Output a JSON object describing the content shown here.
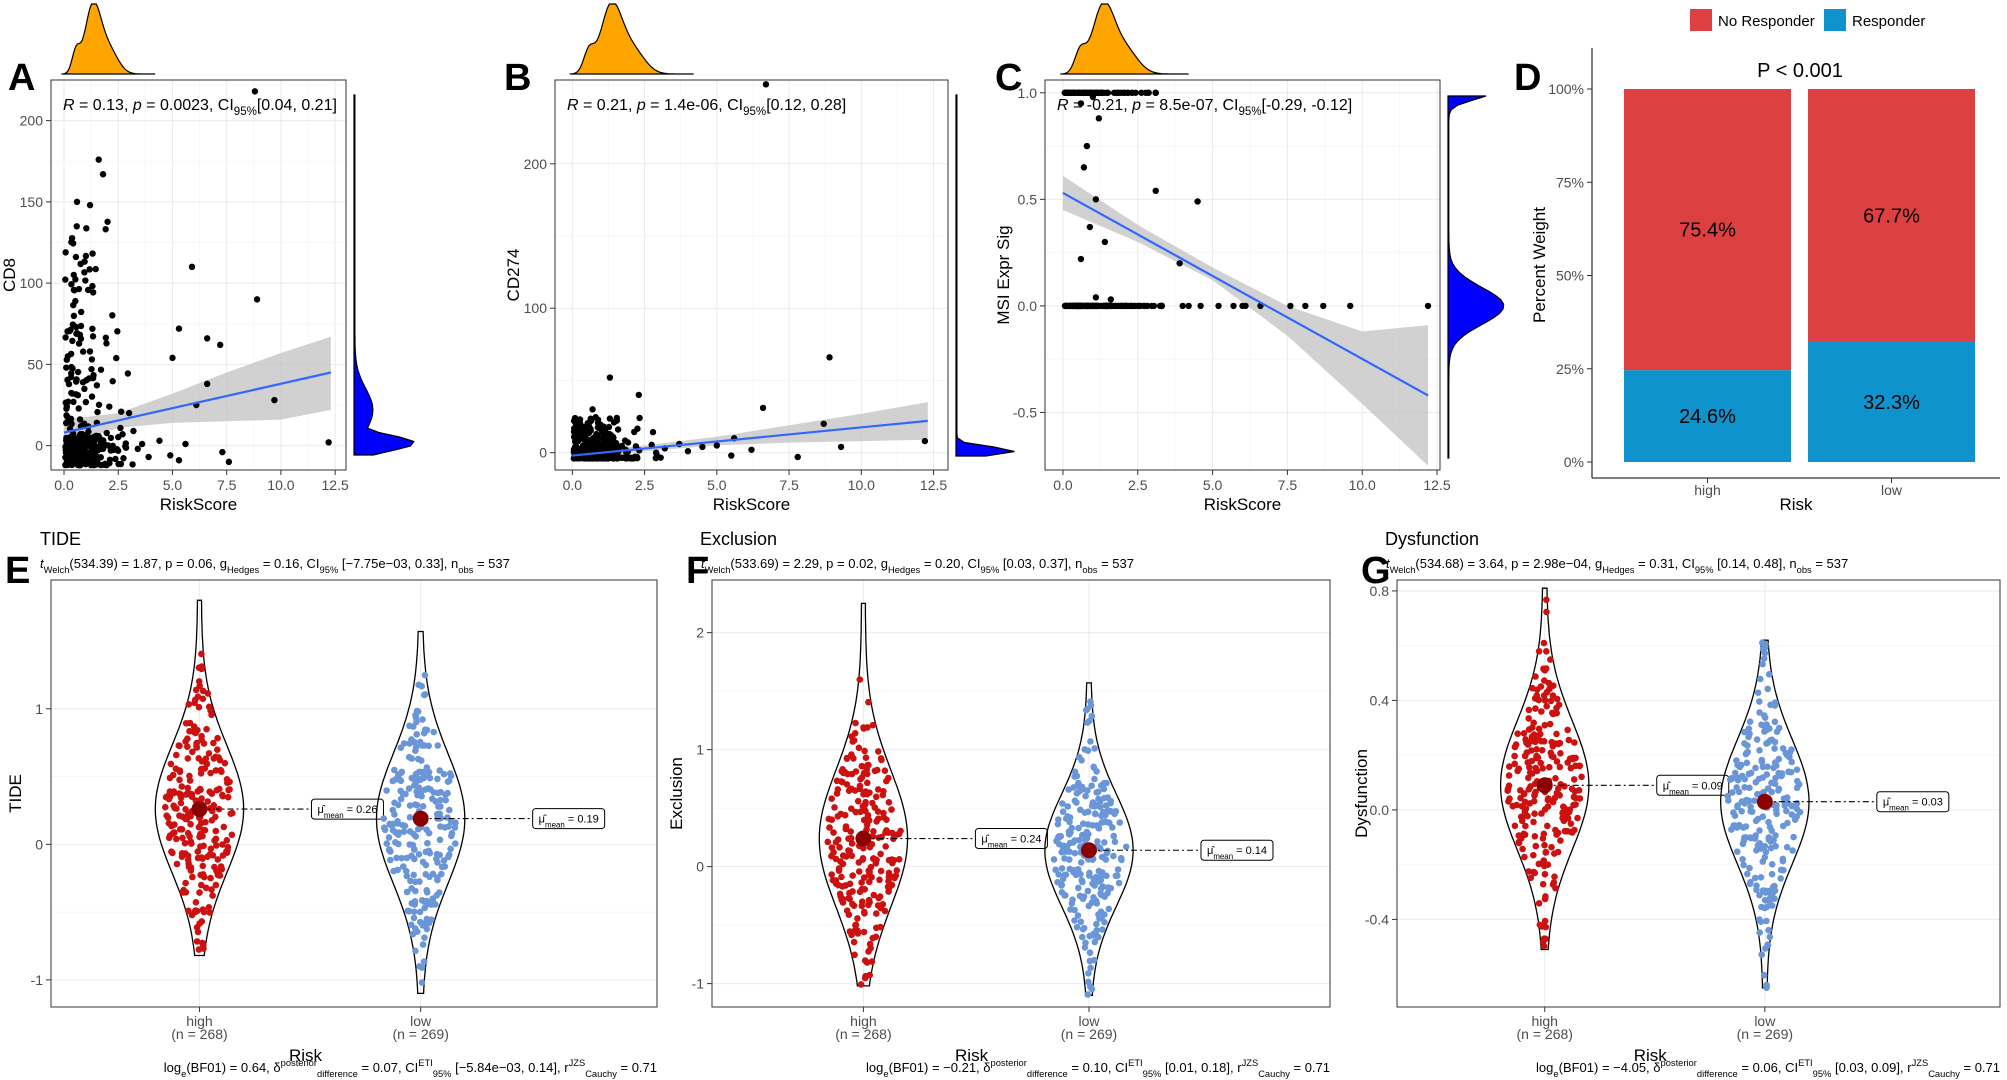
{
  "figure": {
    "letters": [
      "A",
      "B",
      "C",
      "D",
      "E",
      "F",
      "G"
    ]
  },
  "colors": {
    "density_top": "#FFA500",
    "density_right": "#0000FF",
    "regression": "#3366FF",
    "ribbon": "#BEBEBE",
    "no_responder": "#DD4040",
    "responder": "#0F93CC",
    "high": "#CC1111",
    "low": "#6A96D8",
    "mean_dot": "#8B0000"
  },
  "chart_data": [
    {
      "id": "A",
      "type": "scatter",
      "xlabel": "RiskScore",
      "ylabel": "CD8",
      "xlim": [
        -0.6,
        13.0
      ],
      "ylim": [
        -15,
        225
      ],
      "xticks": [
        "0.0",
        "2.5",
        "5.0",
        "7.5",
        "10.0",
        "12.5"
      ],
      "xtick_values": [
        0,
        2.5,
        5,
        7.5,
        10,
        12.5
      ],
      "yticks": [
        "0",
        "50",
        "100",
        "150",
        "200"
      ],
      "ytick_values": [
        0,
        50,
        100,
        150,
        200
      ],
      "stat": {
        "R": "0.13",
        "p": "0.0023",
        "ci": "[0.04, 0.21]"
      },
      "fit": {
        "x0": 0,
        "y0": 8,
        "x1": 12.3,
        "y1": 45
      },
      "ribbon": [
        [
          0,
          0,
          16
        ],
        [
          2.5,
          11,
          20
        ],
        [
          5,
          14,
          32
        ],
        [
          7.5,
          15,
          45
        ],
        [
          10,
          16,
          57
        ],
        [
          12.3,
          22,
          67
        ]
      ],
      "sparse_points": [
        [
          8.8,
          218
        ],
        [
          1.6,
          176
        ],
        [
          1.8,
          167
        ],
        [
          0.6,
          150
        ],
        [
          1.2,
          148
        ],
        [
          5.9,
          110
        ],
        [
          8.9,
          90
        ],
        [
          6.6,
          66
        ],
        [
          6.1,
          25
        ],
        [
          9.7,
          28
        ],
        [
          6.6,
          38
        ],
        [
          5.0,
          54
        ],
        [
          5.3,
          72
        ],
        [
          7.2,
          62
        ],
        [
          12.2,
          2
        ],
        [
          7.6,
          -10
        ],
        [
          7.3,
          -4
        ],
        [
          4.9,
          -6
        ],
        [
          4.4,
          3
        ],
        [
          5.3,
          -9
        ],
        [
          5.6,
          1
        ],
        [
          3.6,
          1
        ],
        [
          3.9,
          -7
        ],
        [
          3.2,
          9
        ],
        [
          3.4,
          -2
        ],
        [
          3.0,
          20
        ],
        [
          2.7,
          7
        ]
      ]
    },
    {
      "id": "B",
      "type": "scatter",
      "xlabel": "RiskScore",
      "ylabel": "CD274",
      "xlim": [
        -0.6,
        13.0
      ],
      "ylim": [
        -12,
        258
      ],
      "xticks": [
        "0.0",
        "2.5",
        "5.0",
        "7.5",
        "10.0",
        "12.5"
      ],
      "xtick_values": [
        0,
        2.5,
        5,
        7.5,
        10,
        12.5
      ],
      "yticks": [
        "0",
        "100",
        "200"
      ],
      "ytick_values": [
        0,
        100,
        200
      ],
      "stat": {
        "R": "0.21",
        "p": "1.4e-06",
        "ci": "[0.12, 0.28]"
      },
      "fit": {
        "x0": 0,
        "y0": -2,
        "x1": 12.3,
        "y1": 22
      },
      "ribbon": [
        [
          0,
          -5,
          1
        ],
        [
          2.5,
          1,
          5
        ],
        [
          5,
          5,
          11
        ],
        [
          7.5,
          7,
          19
        ],
        [
          10,
          8,
          27
        ],
        [
          12.3,
          9,
          35
        ]
      ],
      "sparse_points": [
        [
          6.7,
          255
        ],
        [
          8.9,
          66
        ],
        [
          6.6,
          31
        ],
        [
          8.7,
          20
        ],
        [
          12.2,
          8
        ],
        [
          5.6,
          10
        ],
        [
          6.2,
          2
        ],
        [
          5.5,
          -2
        ],
        [
          5.0,
          5
        ],
        [
          4.5,
          4
        ],
        [
          7.8,
          -3
        ],
        [
          9.3,
          4
        ],
        [
          1.3,
          52
        ],
        [
          2.3,
          40
        ],
        [
          0.7,
          30
        ],
        [
          3.2,
          3
        ],
        [
          4.0,
          1
        ],
        [
          3.7,
          6
        ],
        [
          2.9,
          0
        ]
      ]
    },
    {
      "id": "C",
      "type": "scatter",
      "xlabel": "RiskScore",
      "ylabel": "MSI Expr Sig",
      "xlim": [
        -0.6,
        12.6
      ],
      "ylim": [
        -0.77,
        1.06
      ],
      "xticks": [
        "0.0",
        "2.5",
        "5.0",
        "7.5",
        "10.0",
        "12.5"
      ],
      "xtick_values": [
        0,
        2.5,
        5,
        7.5,
        10,
        12.5
      ],
      "yticks": [
        "-0.5",
        "0.0",
        "0.5",
        "1.0"
      ],
      "ytick_values": [
        -0.5,
        0,
        0.5,
        1.0
      ],
      "stat": {
        "R": "-0.21",
        "p": "8.5e-07",
        "ci": "[-0.29, -0.12]"
      },
      "fit": {
        "x0": 0,
        "y0": 0.53,
        "x1": 12.2,
        "y1": -0.42
      },
      "ribbon": [
        [
          0,
          0.45,
          0.61
        ],
        [
          2.5,
          0.3,
          0.38
        ],
        [
          5,
          0.12,
          0.18
        ],
        [
          7.5,
          -0.14,
          0.0
        ],
        [
          10,
          -0.46,
          -0.12
        ],
        [
          12.2,
          -0.75,
          -0.09
        ]
      ],
      "sparse_points": [
        [
          3.1,
          0.54
        ],
        [
          4.5,
          0.49
        ],
        [
          3.9,
          0.2
        ],
        [
          1.0,
          0.98
        ],
        [
          0.6,
          0.95
        ],
        [
          1.2,
          0.88
        ],
        [
          0.8,
          0.75
        ],
        [
          0.7,
          0.65
        ],
        [
          1.1,
          0.5
        ],
        [
          0.9,
          0.37
        ],
        [
          1.4,
          0.3
        ],
        [
          0.6,
          0.22
        ],
        [
          1.6,
          0.03
        ],
        [
          1.1,
          0.04
        ],
        [
          4.2,
          0.0
        ],
        [
          4.0,
          0.0
        ],
        [
          4.6,
          0.0
        ],
        [
          5.2,
          0.0
        ],
        [
          5.7,
          0.0
        ],
        [
          6.0,
          0.0
        ],
        [
          6.6,
          0.0
        ],
        [
          7.6,
          0.0
        ],
        [
          8.1,
          0.0
        ],
        [
          8.7,
          0.0
        ],
        [
          9.6,
          0.0
        ],
        [
          12.2,
          0.0
        ],
        [
          6.1,
          0.0
        ]
      ]
    },
    {
      "id": "D",
      "type": "bar",
      "xlabel": "Risk",
      "ylabel": "Percent Weight",
      "categories": [
        "high",
        "low"
      ],
      "series": [
        {
          "name": "Responder",
          "values": [
            24.6,
            32.3
          ]
        },
        {
          "name": "No Responder",
          "values": [
            75.4,
            67.7
          ]
        }
      ],
      "labels": {
        "high": {
          "no": "75.4%",
          "resp": "24.6%"
        },
        "low": {
          "no": "67.7%",
          "resp": "32.3%"
        }
      },
      "yticks": [
        "0%",
        "25%",
        "50%",
        "75%",
        "100%"
      ],
      "ytick_values": [
        0,
        25,
        50,
        75,
        100
      ],
      "ylim": [
        0,
        100
      ],
      "pvalue": "P < 0.001",
      "legend": [
        "No Responder",
        "Responder"
      ]
    },
    {
      "id": "E",
      "type": "violin",
      "title": "TIDE",
      "ylabel": "TIDE",
      "xlabel": "Risk",
      "ylim": [
        -1.2,
        1.95
      ],
      "yticks": [
        "-1",
        "0",
        "1"
      ],
      "ytick_values": [
        -1,
        0,
        1
      ],
      "categories": [
        "high",
        "low"
      ],
      "n_labels": [
        "(n = 268)",
        "(n = 269)"
      ],
      "means": [
        0.26,
        0.19
      ],
      "mean_labels": [
        "= 0.26",
        "= 0.19"
      ],
      "ranges": [
        [
          -0.82,
          1.8
        ],
        [
          -1.1,
          1.57
        ]
      ],
      "subtitle": "(534.39) = 1.87, p = 0.06, g",
      "subtitle_tail": "= 0.16, CI",
      "subtitle_ci": "[−7.75e−03, 0.33], n",
      "subtitle_n": "= 537",
      "footer_bf": "= 0.64, δ",
      "footer_diff": "= 0.07, CI",
      "footer_ci": "[−5.84e−03, 0.14], r",
      "footer_r": "= 0.71"
    },
    {
      "id": "F",
      "type": "violin",
      "title": "Exclusion",
      "ylabel": "Exclusion",
      "xlabel": "Risk",
      "ylim": [
        -1.2,
        2.45
      ],
      "yticks": [
        "-1",
        "0",
        "1",
        "2"
      ],
      "ytick_values": [
        -1,
        0,
        1,
        2
      ],
      "categories": [
        "high",
        "low"
      ],
      "n_labels": [
        "(n = 268)",
        "(n = 269)"
      ],
      "means": [
        0.24,
        0.14
      ],
      "mean_labels": [
        "= 0.24",
        "= 0.14"
      ],
      "ranges": [
        [
          -1.02,
          2.25
        ],
        [
          -1.1,
          1.57
        ]
      ],
      "subtitle": "(533.69) = 2.29, p = 0.02, g",
      "subtitle_tail": "= 0.20, CI",
      "subtitle_ci": "[0.03, 0.37], n",
      "subtitle_n": "= 537",
      "footer_bf": "= −0.21, δ",
      "footer_diff": "= 0.10, CI",
      "footer_ci": "[0.01, 0.18], r",
      "footer_r": "= 0.71"
    },
    {
      "id": "G",
      "type": "violin",
      "title": "Dysfunction",
      "ylabel": "Dysfunction",
      "xlabel": "Risk",
      "ylim": [
        -0.72,
        0.84
      ],
      "yticks": [
        "-0.4",
        "0.0",
        "0.4",
        "0.8"
      ],
      "ytick_values": [
        -0.4,
        0,
        0.4,
        0.8
      ],
      "categories": [
        "high",
        "low"
      ],
      "n_labels": [
        "(n = 268)",
        "(n = 269)"
      ],
      "means": [
        0.09,
        0.03
      ],
      "mean_labels": [
        "= 0.09",
        "= 0.03"
      ],
      "ranges": [
        [
          -0.51,
          0.81
        ],
        [
          -0.65,
          0.62
        ]
      ],
      "subtitle": "(534.68) = 3.64, p = 2.98e−04, g",
      "subtitle_tail": "= 0.31, CI",
      "subtitle_ci": "[0.14, 0.48], n",
      "subtitle_n": "= 537",
      "footer_bf": "= −4.05, δ",
      "footer_diff": "= 0.06, CI",
      "footer_ci": "[0.03, 0.09], r",
      "footer_r": "= 0.71"
    }
  ],
  "text": {
    "R_eq": "R = ",
    "p_eq": ", p = ",
    "ci_label": ", CI",
    "ci_sub": "95%",
    "t_prefix": "t",
    "t_sub": "Welch",
    "g_sub": "Hedges",
    "ci95_sub": "95%",
    "n_sub": "obs",
    "mu_mean": "μ̂",
    "mean_sub": "mean",
    "log_prefix": "log",
    "log_sub": "e",
    "bf_sub": "(BF",
    "bf_num": "01",
    "post_sup": "posterior",
    "diff_sub": "difference",
    "eti_sup": "ETI",
    "cauchy_sup": "JZS",
    "cauchy_sub": "Cauchy"
  }
}
